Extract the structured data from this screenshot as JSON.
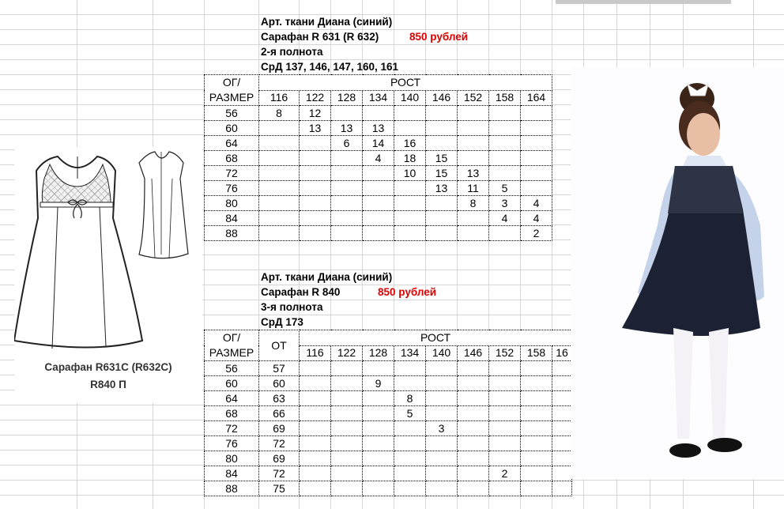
{
  "sheet": {
    "block1": {
      "lines": [
        "Арт. ткани Диана (синий)",
        "Сарафан R 631 (R 632)",
        "2-я полнота",
        "СрД 137, 146, 147, 160, 161"
      ],
      "price": "850 рублей",
      "header": {
        "og": "ОГ/",
        "razmer": "РАЗМЕР",
        "rost": "РОСТ"
      },
      "heights": [
        "116",
        "122",
        "128",
        "134",
        "140",
        "146",
        "152",
        "158",
        "164"
      ],
      "rows": [
        {
          "size": "56",
          "values": [
            "8",
            "12",
            "",
            "",
            "",
            "",
            "",
            "",
            ""
          ]
        },
        {
          "size": "60",
          "values": [
            "",
            "13",
            "13",
            "13",
            "",
            "",
            "",
            "",
            ""
          ]
        },
        {
          "size": "64",
          "values": [
            "",
            "",
            "6",
            "14",
            "16",
            "",
            "",
            "",
            ""
          ]
        },
        {
          "size": "68",
          "values": [
            "",
            "",
            "",
            "4",
            "18",
            "15",
            "",
            "",
            ""
          ]
        },
        {
          "size": "72",
          "values": [
            "",
            "",
            "",
            "",
            "10",
            "15",
            "13",
            "",
            ""
          ]
        },
        {
          "size": "76",
          "values": [
            "",
            "",
            "",
            "",
            "",
            "13",
            "11",
            "5",
            ""
          ]
        },
        {
          "size": "80",
          "values": [
            "",
            "",
            "",
            "",
            "",
            "",
            "8",
            "3",
            "4"
          ]
        },
        {
          "size": "84",
          "values": [
            "",
            "",
            "",
            "",
            "",
            "",
            "",
            "4",
            "4"
          ]
        },
        {
          "size": "88",
          "values": [
            "",
            "",
            "",
            "",
            "",
            "",
            "",
            "",
            "2"
          ]
        }
      ]
    },
    "block2": {
      "lines": [
        "Арт. ткани Диана (синий)",
        "Сарафан R 840",
        "3-я полнота",
        "СрД 173"
      ],
      "price": "850 рублей",
      "header": {
        "og": "ОГ/",
        "razmer": "РАЗМЕР",
        "ot": "ОТ",
        "rost": "РОСТ"
      },
      "heights": [
        "116",
        "122",
        "128",
        "134",
        "140",
        "146",
        "152",
        "158",
        "16"
      ],
      "rows": [
        {
          "size": "56",
          "ot": "57",
          "values": [
            "",
            "",
            "",
            "",
            "",
            "",
            "",
            "",
            ""
          ]
        },
        {
          "size": "60",
          "ot": "60",
          "values": [
            "",
            "",
            "9",
            "",
            "",
            "",
            "",
            "",
            ""
          ]
        },
        {
          "size": "64",
          "ot": "63",
          "values": [
            "",
            "",
            "",
            "8",
            "",
            "",
            "",
            "",
            ""
          ]
        },
        {
          "size": "68",
          "ot": "66",
          "values": [
            "",
            "",
            "",
            "5",
            "",
            "",
            "",
            "",
            ""
          ]
        },
        {
          "size": "72",
          "ot": "69",
          "values": [
            "",
            "",
            "",
            "",
            "3",
            "",
            "",
            "",
            ""
          ]
        },
        {
          "size": "76",
          "ot": "72",
          "values": [
            "",
            "",
            "",
            "",
            "",
            "",
            "",
            "",
            ""
          ]
        },
        {
          "size": "80",
          "ot": "69",
          "values": [
            "",
            "",
            "",
            "",
            "",
            "",
            "",
            "",
            ""
          ]
        },
        {
          "size": "84",
          "ot": "72",
          "values": [
            "",
            "",
            "",
            "",
            "",
            "",
            "2",
            "",
            ""
          ]
        },
        {
          "size": "88",
          "ot": "75",
          "values": [
            "",
            "",
            "",
            "",
            "",
            "",
            "",
            "",
            ""
          ]
        }
      ]
    }
  },
  "drawing": {
    "caption_line1": "Сарафан R631C (R632C)",
    "caption_line2": "R840 П"
  },
  "colors": {
    "price": "#e00000",
    "grid": "#d6d6d6",
    "dress": "#1c2233",
    "shirt": "#c5d3ea"
  }
}
